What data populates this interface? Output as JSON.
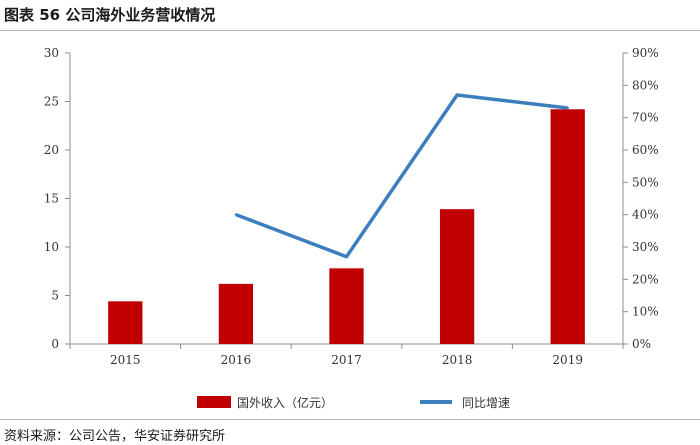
{
  "figure": {
    "title": "图表 56  公司海外业务营收情况",
    "source": "资料来源：公司公告，华安证券研究所"
  },
  "colors": {
    "bar": "#c00000",
    "line": "#3d7ebf",
    "axis": "#8c8c8c"
  },
  "chart_data": {
    "type": "bar",
    "categories": [
      "2015",
      "2016",
      "2017",
      "2018",
      "2019"
    ],
    "series": [
      {
        "name": "国外收入（亿元）",
        "type": "bar",
        "axis": "left",
        "values": [
          4.4,
          6.2,
          7.8,
          13.9,
          24.2
        ]
      },
      {
        "name": "同比增速",
        "type": "line",
        "axis": "right",
        "values": [
          null,
          0.4,
          0.27,
          0.77,
          0.73
        ]
      }
    ],
    "y_left": {
      "min": 0,
      "max": 30,
      "ticks": [
        "0",
        "5",
        "10",
        "15",
        "20",
        "25",
        "30"
      ]
    },
    "y_right": {
      "min": 0,
      "max": 0.9,
      "ticks": [
        "0%",
        "10%",
        "20%",
        "30%",
        "40%",
        "50%",
        "60%",
        "70%",
        "80%",
        "90%"
      ]
    },
    "grid": false,
    "legend": "bottom"
  }
}
